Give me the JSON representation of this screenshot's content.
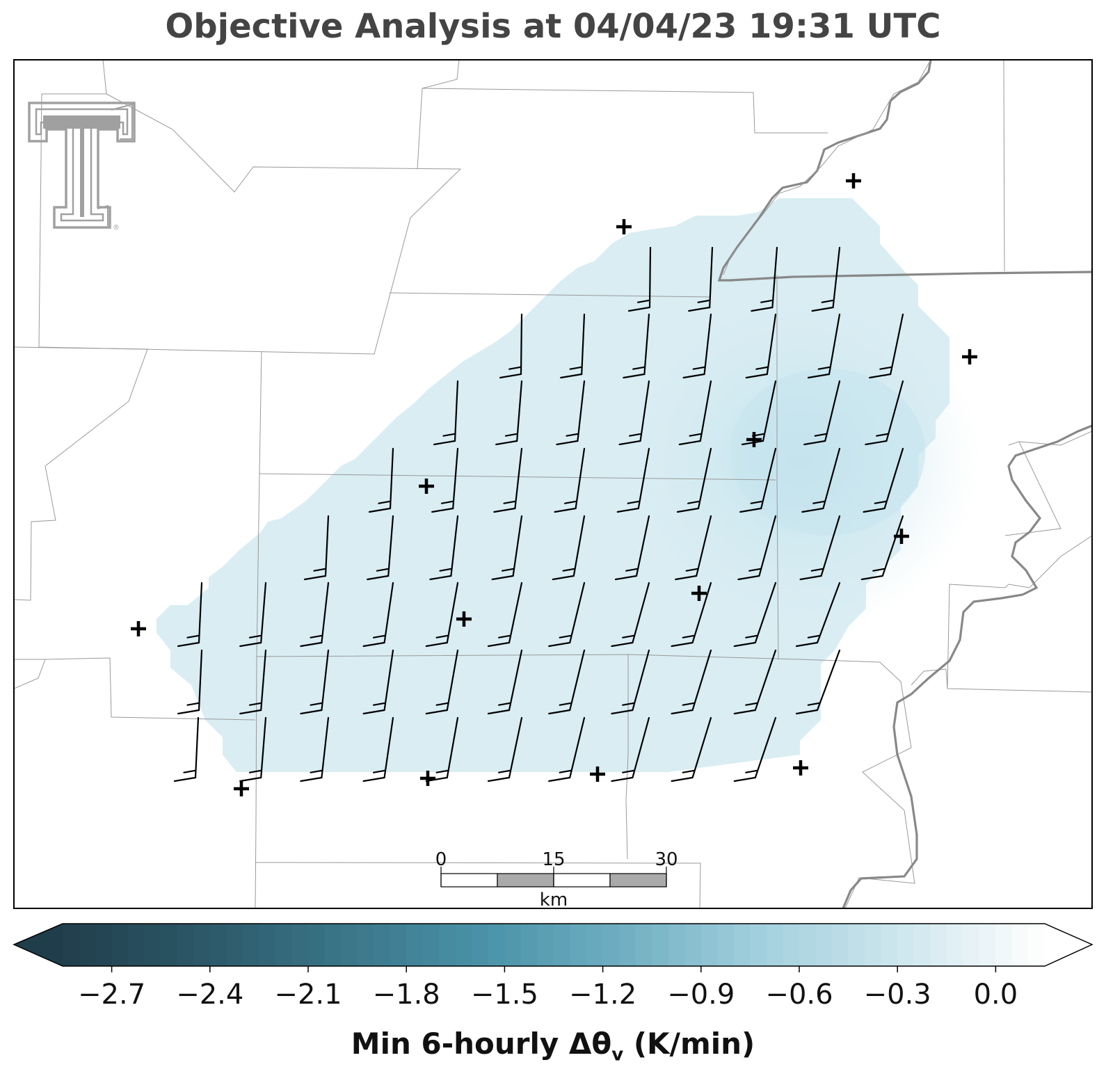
{
  "title": "Objective Analysis at 04/04/23 19:31 UTC",
  "colorbar": {
    "label_main": "Min 6-hourly Δθ",
    "label_sub": "v",
    "label_unit": "(K/min)",
    "ticks": [
      "−2.7",
      "−2.4",
      "−2.1",
      "−1.8",
      "−1.5",
      "−1.2",
      "−0.9",
      "−0.6",
      "−0.3",
      "0.0"
    ],
    "min": -2.85,
    "max": 0.15,
    "colors": [
      "#213f4c",
      "#2c5868",
      "#3a7588",
      "#4a92a8",
      "#70afc2",
      "#a4d0de",
      "#cfe7ee",
      "#ffffff"
    ]
  },
  "scale_bar": {
    "labels": [
      "0",
      "15",
      "30"
    ],
    "unit": "km"
  },
  "logo": {
    "icon": "texas-tech-double-t-logo",
    "color": "#a0a0a0"
  },
  "colors": {
    "field": "#d9edf3",
    "field_core": "#c4e4ed",
    "border": "#999999",
    "river": "#888888",
    "barb": "#000000",
    "station": "#000000"
  },
  "icons": {
    "station": "plus-marker",
    "wind": "wind-barb"
  }
}
